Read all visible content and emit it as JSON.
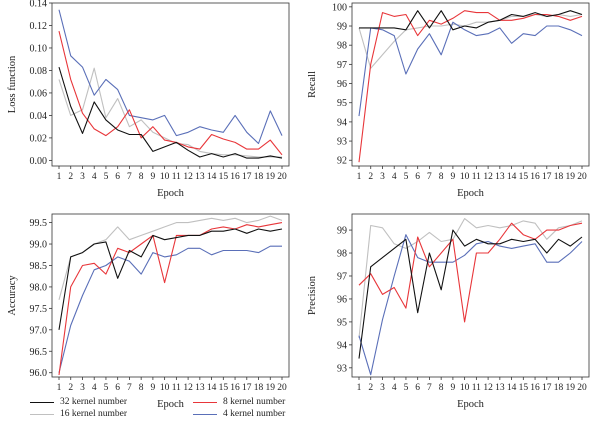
{
  "colors": {
    "black": "#111111",
    "gray": "#c0c0c0",
    "red": "#e8363a",
    "blue": "#5a6fb8"
  },
  "legend": [
    {
      "label": "32 kernel number",
      "color": "#111111"
    },
    {
      "label": "8 kernel number",
      "color": "#e8363a"
    },
    {
      "label": "16 kernel number",
      "color": "#c0c0c0"
    },
    {
      "label": "4 kernel number",
      "color": "#5a6fb8"
    }
  ],
  "chart_data": [
    {
      "type": "line",
      "ylabel": "Loss function",
      "xlabel": "Epoch",
      "x": [
        1,
        2,
        3,
        4,
        5,
        6,
        7,
        8,
        9,
        10,
        11,
        12,
        13,
        14,
        15,
        16,
        17,
        18,
        19,
        20
      ],
      "ylim": [
        -0.005,
        0.14
      ],
      "yticks": [
        "0.00",
        "0.02",
        "0.04",
        "0.06",
        "0.08",
        "0.10",
        "0.12",
        "0.14"
      ],
      "ytick_values": [
        0,
        0.02,
        0.04,
        0.06,
        0.08,
        0.1,
        0.12,
        0.14
      ],
      "series": [
        {
          "name": "16 kernel number",
          "color": "#c0c0c0",
          "values": [
            0.072,
            0.04,
            0.045,
            0.082,
            0.038,
            0.055,
            0.03,
            0.036,
            0.025,
            0.02,
            0.015,
            0.014,
            0.008,
            0.006,
            0.005,
            0.005,
            0.004,
            0.003,
            0.003,
            0.003
          ]
        },
        {
          "name": "4 kernel number",
          "color": "#5a6fb8",
          "values": [
            0.134,
            0.093,
            0.083,
            0.058,
            0.072,
            0.063,
            0.04,
            0.038,
            0.036,
            0.04,
            0.022,
            0.025,
            0.03,
            0.027,
            0.025,
            0.04,
            0.025,
            0.015,
            0.044,
            0.022
          ]
        },
        {
          "name": "8 kernel number",
          "color": "#e8363a",
          "values": [
            0.115,
            0.072,
            0.042,
            0.028,
            0.022,
            0.03,
            0.045,
            0.02,
            0.03,
            0.018,
            0.016,
            0.012,
            0.01,
            0.023,
            0.019,
            0.016,
            0.01,
            0.01,
            0.018,
            0.005
          ]
        },
        {
          "name": "32 kernel number",
          "color": "#111111",
          "values": [
            0.083,
            0.048,
            0.024,
            0.052,
            0.036,
            0.027,
            0.023,
            0.023,
            0.008,
            0.012,
            0.016,
            0.009,
            0.003,
            0.006,
            0.003,
            0.006,
            0.002,
            0.002,
            0.004,
            0.002
          ]
        }
      ]
    },
    {
      "type": "line",
      "ylabel": "Recall",
      "xlabel": "Epoch",
      "x": [
        1,
        2,
        3,
        4,
        5,
        6,
        7,
        8,
        9,
        10,
        11,
        12,
        13,
        14,
        15,
        16,
        17,
        18,
        19,
        20
      ],
      "ylim": [
        91.7,
        100.2
      ],
      "yticks": [
        "92",
        "93",
        "94",
        "95",
        "96",
        "97",
        "98",
        "99",
        "100"
      ],
      "ytick_values": [
        92,
        93,
        94,
        95,
        96,
        97,
        98,
        99,
        100
      ],
      "series": [
        {
          "name": "16 kernel number",
          "color": "#c0c0c0",
          "values": [
            98.9,
            96.8,
            97.5,
            98.2,
            98.8,
            98.9,
            99.0,
            99.0,
            99.1,
            99.0,
            99.2,
            99.2,
            99.3,
            99.5,
            99.5,
            99.6,
            99.5,
            99.6,
            99.5,
            99.6
          ]
        },
        {
          "name": "4 kernel number",
          "color": "#5a6fb8",
          "values": [
            94.3,
            98.9,
            98.8,
            98.5,
            96.5,
            97.8,
            98.6,
            97.5,
            99.2,
            98.8,
            98.5,
            98.6,
            98.9,
            98.1,
            98.6,
            98.5,
            99.0,
            99.0,
            98.8,
            98.5
          ]
        },
        {
          "name": "8 kernel number",
          "color": "#e8363a",
          "values": [
            91.9,
            97.0,
            99.7,
            99.5,
            99.6,
            98.5,
            99.3,
            99.1,
            99.4,
            99.8,
            99.7,
            99.7,
            99.3,
            99.3,
            99.4,
            99.6,
            99.6,
            99.5,
            99.3,
            99.5
          ]
        },
        {
          "name": "32 kernel number",
          "color": "#111111",
          "values": [
            98.9,
            98.9,
            98.9,
            98.9,
            98.8,
            99.8,
            98.9,
            99.8,
            98.8,
            99.0,
            98.9,
            99.2,
            99.3,
            99.6,
            99.5,
            99.7,
            99.5,
            99.6,
            99.8,
            99.6
          ]
        }
      ]
    },
    {
      "type": "line",
      "ylabel": "Accuracy",
      "xlabel": "Epoch",
      "x": [
        1,
        2,
        3,
        4,
        5,
        6,
        7,
        8,
        9,
        10,
        11,
        12,
        13,
        14,
        15,
        16,
        17,
        18,
        19,
        20
      ],
      "ylim": [
        95.9,
        99.7
      ],
      "yticks": [
        "96.0",
        "96.5",
        "97.0",
        "97.5",
        "98.0",
        "98.5",
        "99.0",
        "99.5"
      ],
      "ytick_values": [
        96.0,
        96.5,
        97.0,
        97.5,
        98.0,
        98.5,
        99.0,
        99.5
      ],
      "series": [
        {
          "name": "16 kernel number",
          "color": "#c0c0c0",
          "values": [
            97.7,
            98.7,
            98.8,
            99.0,
            99.1,
            99.4,
            99.1,
            99.2,
            99.3,
            99.4,
            99.5,
            99.5,
            99.55,
            99.6,
            99.55,
            99.6,
            99.5,
            99.55,
            99.65,
            99.55
          ]
        },
        {
          "name": "4 kernel number",
          "color": "#5a6fb8",
          "values": [
            96.0,
            97.1,
            97.8,
            98.4,
            98.5,
            98.7,
            98.6,
            98.3,
            98.8,
            98.7,
            98.75,
            98.9,
            98.9,
            98.75,
            98.85,
            98.85,
            98.85,
            98.8,
            98.95,
            98.95
          ]
        },
        {
          "name": "8 kernel number",
          "color": "#e8363a",
          "values": [
            95.95,
            98.0,
            98.5,
            98.55,
            98.3,
            98.9,
            98.8,
            99.0,
            99.2,
            98.1,
            99.2,
            99.2,
            99.2,
            99.35,
            99.4,
            99.35,
            99.45,
            99.4,
            99.45,
            99.5
          ]
        },
        {
          "name": "32 kernel number",
          "color": "#111111",
          "values": [
            97.0,
            98.7,
            98.8,
            99.0,
            99.05,
            98.2,
            98.85,
            98.7,
            99.2,
            99.1,
            99.15,
            99.2,
            99.2,
            99.3,
            99.3,
            99.35,
            99.25,
            99.35,
            99.3,
            99.35
          ]
        }
      ]
    },
    {
      "type": "line",
      "ylabel": "Precision",
      "xlabel": "Epoch",
      "x": [
        1,
        2,
        3,
        4,
        5,
        6,
        7,
        8,
        9,
        10,
        11,
        12,
        13,
        14,
        15,
        16,
        17,
        18,
        19,
        20
      ],
      "ylim": [
        92.6,
        99.7
      ],
      "yticks": [
        "93",
        "94",
        "95",
        "96",
        "97",
        "98",
        "99"
      ],
      "ytick_values": [
        93,
        94,
        95,
        96,
        97,
        98,
        99
      ],
      "series": [
        {
          "name": "16 kernel number",
          "color": "#c0c0c0",
          "values": [
            94.3,
            99.2,
            99.1,
            98.4,
            98.2,
            98.5,
            98.9,
            98.5,
            98.6,
            99.5,
            99.1,
            99.2,
            99.1,
            99.2,
            99.4,
            99.3,
            98.6,
            99.1,
            99.2,
            99.4
          ]
        },
        {
          "name": "4 kernel number",
          "color": "#5a6fb8",
          "values": [
            94.4,
            92.7,
            95.1,
            97.0,
            98.8,
            97.8,
            97.6,
            97.6,
            97.6,
            97.9,
            98.4,
            98.5,
            98.3,
            98.2,
            98.3,
            98.4,
            97.6,
            97.6,
            98.0,
            98.5
          ]
        },
        {
          "name": "8 kernel number",
          "color": "#e8363a",
          "values": [
            96.6,
            97.1,
            96.2,
            96.5,
            95.6,
            98.7,
            97.4,
            98.0,
            98.6,
            95.0,
            98.0,
            98.0,
            98.6,
            99.3,
            98.8,
            98.6,
            99.0,
            99.0,
            99.2,
            99.3
          ]
        },
        {
          "name": "32 kernel number",
          "color": "#111111",
          "values": [
            93.4,
            97.4,
            97.8,
            98.2,
            98.6,
            95.4,
            98.0,
            96.4,
            99.0,
            98.3,
            98.6,
            98.4,
            98.4,
            98.6,
            98.5,
            98.6,
            98.0,
            98.6,
            98.3,
            98.7
          ]
        }
      ]
    }
  ]
}
